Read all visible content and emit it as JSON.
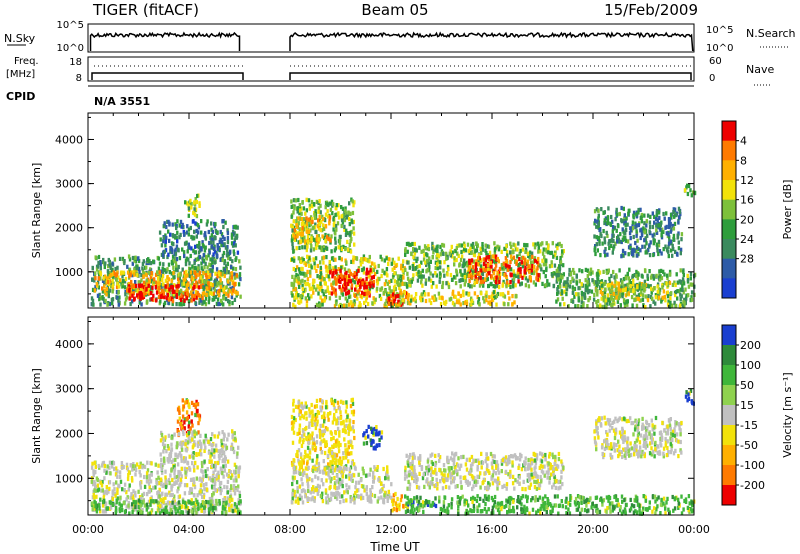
{
  "header": {
    "left": "TIGER (fitACF)",
    "center": "Beam 05",
    "right": "15/Feb/2009"
  },
  "panels": {
    "nsky": {
      "label": "N.Sky",
      "ticks": [
        "10^5",
        "10^0"
      ],
      "right_label": "N.Search",
      "right_ticks": [
        "10^5",
        "10^0"
      ]
    },
    "freq": {
      "label_line1": "Freq.",
      "label_line2": "[MHz]",
      "ticks": [
        "18",
        "8"
      ],
      "right_label": "Nave",
      "right_ticks": [
        "60",
        "0"
      ]
    },
    "cpid": {
      "label": "CPID",
      "value": "N/A 3551"
    }
  },
  "x_axis": {
    "label": "Time UT",
    "ticks": [
      "00:00",
      "04:00",
      "08:00",
      "12:00",
      "16:00",
      "20:00",
      "00:00"
    ]
  },
  "colors": {
    "red": "#ee0000",
    "orange": "#ff8a00",
    "yellow": "#f2e20a",
    "green": "#2e9d3c",
    "blue": "#1a3fd0",
    "gray": "#c0c0c0"
  },
  "chart_data": [
    {
      "type": "heatmap",
      "title": "",
      "xlabel": "",
      "ylabel": "Slant Range [km]",
      "yticks": [
        "1000",
        "2000",
        "3000",
        "4000"
      ],
      "xlim": [
        0,
        24
      ],
      "ylim": [
        180,
        4600
      ],
      "colorbar": {
        "label": "Power [dB]",
        "ticks": [
          "4",
          "8",
          "12",
          "16",
          "20",
          "24",
          "28"
        ],
        "colors": [
          "#1a3fd0",
          "#2d5ba7",
          "#3a8a5e",
          "#2e9d3c",
          "#7dc03a",
          "#f2e20a",
          "#ffb000",
          "#ff7a00",
          "#ee0000"
        ]
      },
      "regions": [
        {
          "t0": 0.1,
          "t1": 6.0,
          "r0": 300,
          "r1": 1400,
          "v": 0.35
        },
        {
          "t0": 0.2,
          "t1": 5.9,
          "r0": 500,
          "r1": 1050,
          "v": 0.7
        },
        {
          "t0": 1.5,
          "t1": 4.5,
          "r0": 380,
          "r1": 750,
          "v": 0.95
        },
        {
          "t0": 2.8,
          "t1": 5.9,
          "r0": 1400,
          "r1": 2200,
          "v": 0.25
        },
        {
          "t0": 3.8,
          "t1": 4.4,
          "r0": 2300,
          "r1": 2800,
          "v": 0.5
        },
        {
          "t0": 8.0,
          "t1": 10.5,
          "r0": 1500,
          "r1": 2700,
          "v": 0.45
        },
        {
          "t0": 8.0,
          "t1": 12.5,
          "r0": 250,
          "r1": 1400,
          "v": 0.55
        },
        {
          "t0": 9.5,
          "t1": 11.3,
          "r0": 500,
          "r1": 1100,
          "v": 0.95
        },
        {
          "t0": 11.8,
          "t1": 12.6,
          "r0": 300,
          "r1": 700,
          "v": 0.9
        },
        {
          "t0": 8.1,
          "t1": 9.6,
          "r0": 1700,
          "r1": 2300,
          "v": 0.7
        },
        {
          "t0": 12.5,
          "t1": 18.8,
          "r0": 700,
          "r1": 1700,
          "v": 0.45
        },
        {
          "t0": 15.0,
          "t1": 17.8,
          "r0": 800,
          "r1": 1400,
          "v": 0.85
        },
        {
          "t0": 12.3,
          "t1": 17.0,
          "r0": 300,
          "r1": 600,
          "v": 0.6
        },
        {
          "t0": 18.5,
          "t1": 24.0,
          "r0": 250,
          "r1": 1100,
          "v": 0.4
        },
        {
          "t0": 20.0,
          "t1": 23.0,
          "r0": 400,
          "r1": 800,
          "v": 0.6
        },
        {
          "t0": 20.0,
          "t1": 23.5,
          "r0": 1400,
          "r1": 2500,
          "v": 0.3
        },
        {
          "t0": 23.6,
          "t1": 24.0,
          "r0": 2700,
          "r1": 3000,
          "v": 0.5
        }
      ]
    },
    {
      "type": "heatmap",
      "title": "",
      "xlabel": "Time UT",
      "ylabel": "Slant Range [km]",
      "yticks": [
        "1000",
        "2000",
        "3000",
        "4000"
      ],
      "xlim": [
        0,
        24
      ],
      "ylim": [
        180,
        4600
      ],
      "colorbar": {
        "label": "Velocity [m s⁻¹]",
        "ticks": [
          "200",
          "100",
          "50",
          "15",
          "-15",
          "-50",
          "-100",
          "-200"
        ],
        "colors": [
          "#1a3fd0",
          "#2e8a3a",
          "#3fb63a",
          "#8fd24f",
          "#c0c0c0",
          "#f2e20a",
          "#ffb000",
          "#ff7a00",
          "#ee0000"
        ]
      },
      "regions": [
        {
          "t0": 0.1,
          "t1": 6.0,
          "r0": 300,
          "r1": 1400,
          "v": 4
        },
        {
          "t0": 0.1,
          "t1": 6.0,
          "r0": 250,
          "r1": 550,
          "v": 2
        },
        {
          "t0": 3.5,
          "t1": 4.4,
          "r0": 2000,
          "r1": 2800,
          "v": 7
        },
        {
          "t0": 2.8,
          "t1": 5.9,
          "r0": 1400,
          "r1": 2100,
          "v": 4
        },
        {
          "t0": 8.0,
          "t1": 10.5,
          "r0": 1200,
          "r1": 2800,
          "v": 5
        },
        {
          "t0": 8.0,
          "t1": 12.0,
          "r0": 500,
          "r1": 1300,
          "v": 4
        },
        {
          "t0": 10.8,
          "t1": 11.6,
          "r0": 1700,
          "r1": 2200,
          "v": 0
        },
        {
          "t0": 12.5,
          "t1": 14.2,
          "r0": 420,
          "r1": 520,
          "v": 0
        },
        {
          "t0": 12.0,
          "t1": 12.6,
          "r0": 300,
          "r1": 700,
          "v": 6
        },
        {
          "t0": 12.5,
          "t1": 18.8,
          "r0": 800,
          "r1": 1600,
          "v": 4
        },
        {
          "t0": 12.5,
          "t1": 24.0,
          "r0": 250,
          "r1": 650,
          "v": 2
        },
        {
          "t0": 20.0,
          "t1": 23.5,
          "r0": 1500,
          "r1": 2400,
          "v": 4
        },
        {
          "t0": 23.6,
          "t1": 24.0,
          "r0": 2700,
          "r1": 3000,
          "v": 0
        }
      ]
    }
  ]
}
